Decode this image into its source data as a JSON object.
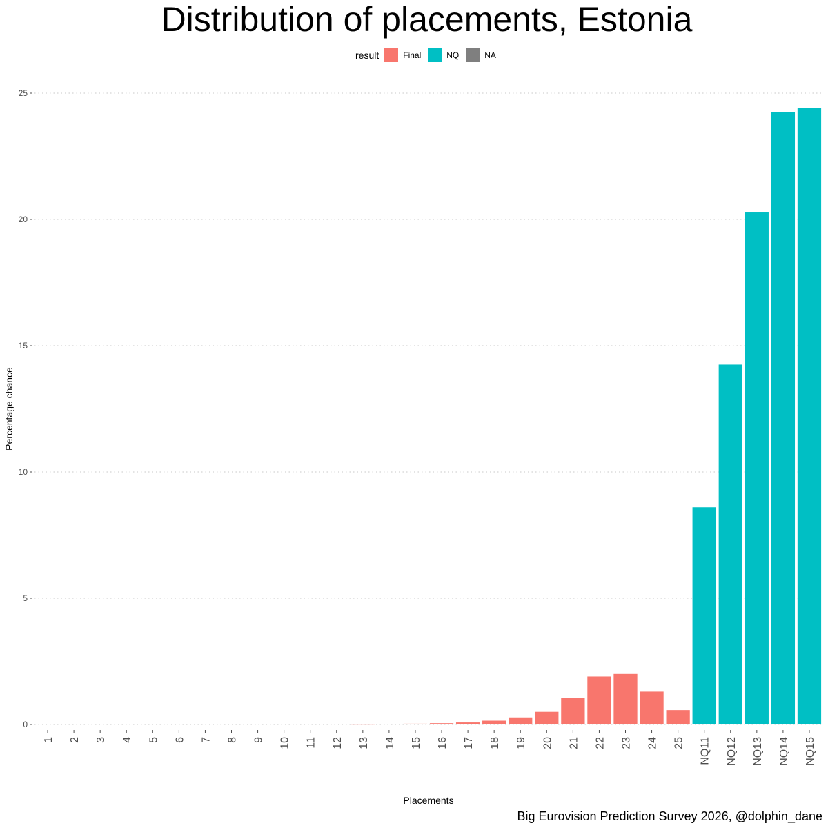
{
  "title": "Distribution of placements, Estonia",
  "caption": "Big Eurovision Prediction Survey 2026, @dolphin_dane",
  "legend": {
    "title": "result",
    "items": [
      {
        "label": "Final",
        "color": "#F8766D"
      },
      {
        "label": "NQ",
        "color": "#00BFC4"
      },
      {
        "label": "NA",
        "color": "#7F7F7F"
      }
    ]
  },
  "chart_data": {
    "type": "bar",
    "xlabel": "Placements",
    "ylabel": "Percentage chance",
    "ylim": [
      0,
      25
    ],
    "yticks": [
      0,
      5,
      10,
      15,
      20,
      25
    ],
    "grid": "horizontal dotted",
    "legend_position": "top",
    "categories": [
      "1",
      "2",
      "3",
      "4",
      "5",
      "6",
      "7",
      "8",
      "9",
      "10",
      "11",
      "12",
      "13",
      "14",
      "15",
      "16",
      "17",
      "18",
      "19",
      "20",
      "21",
      "22",
      "23",
      "24",
      "25",
      "NQ11",
      "NQ12",
      "NQ13",
      "NQ14",
      "NQ15"
    ],
    "values": [
      0,
      0,
      0,
      0,
      0,
      0,
      0,
      0,
      0,
      0,
      0,
      0,
      0.01,
      0.02,
      0.03,
      0.05,
      0.08,
      0.15,
      0.28,
      0.5,
      1.05,
      1.9,
      2.0,
      1.3,
      0.57,
      8.6,
      14.25,
      20.3,
      24.25,
      24.4
    ],
    "result": [
      "Final",
      "Final",
      "Final",
      "Final",
      "Final",
      "Final",
      "Final",
      "Final",
      "Final",
      "Final",
      "Final",
      "Final",
      "Final",
      "Final",
      "Final",
      "Final",
      "Final",
      "Final",
      "Final",
      "Final",
      "Final",
      "Final",
      "Final",
      "Final",
      "Final",
      "NQ",
      "NQ",
      "NQ",
      "NQ",
      "NQ"
    ]
  }
}
